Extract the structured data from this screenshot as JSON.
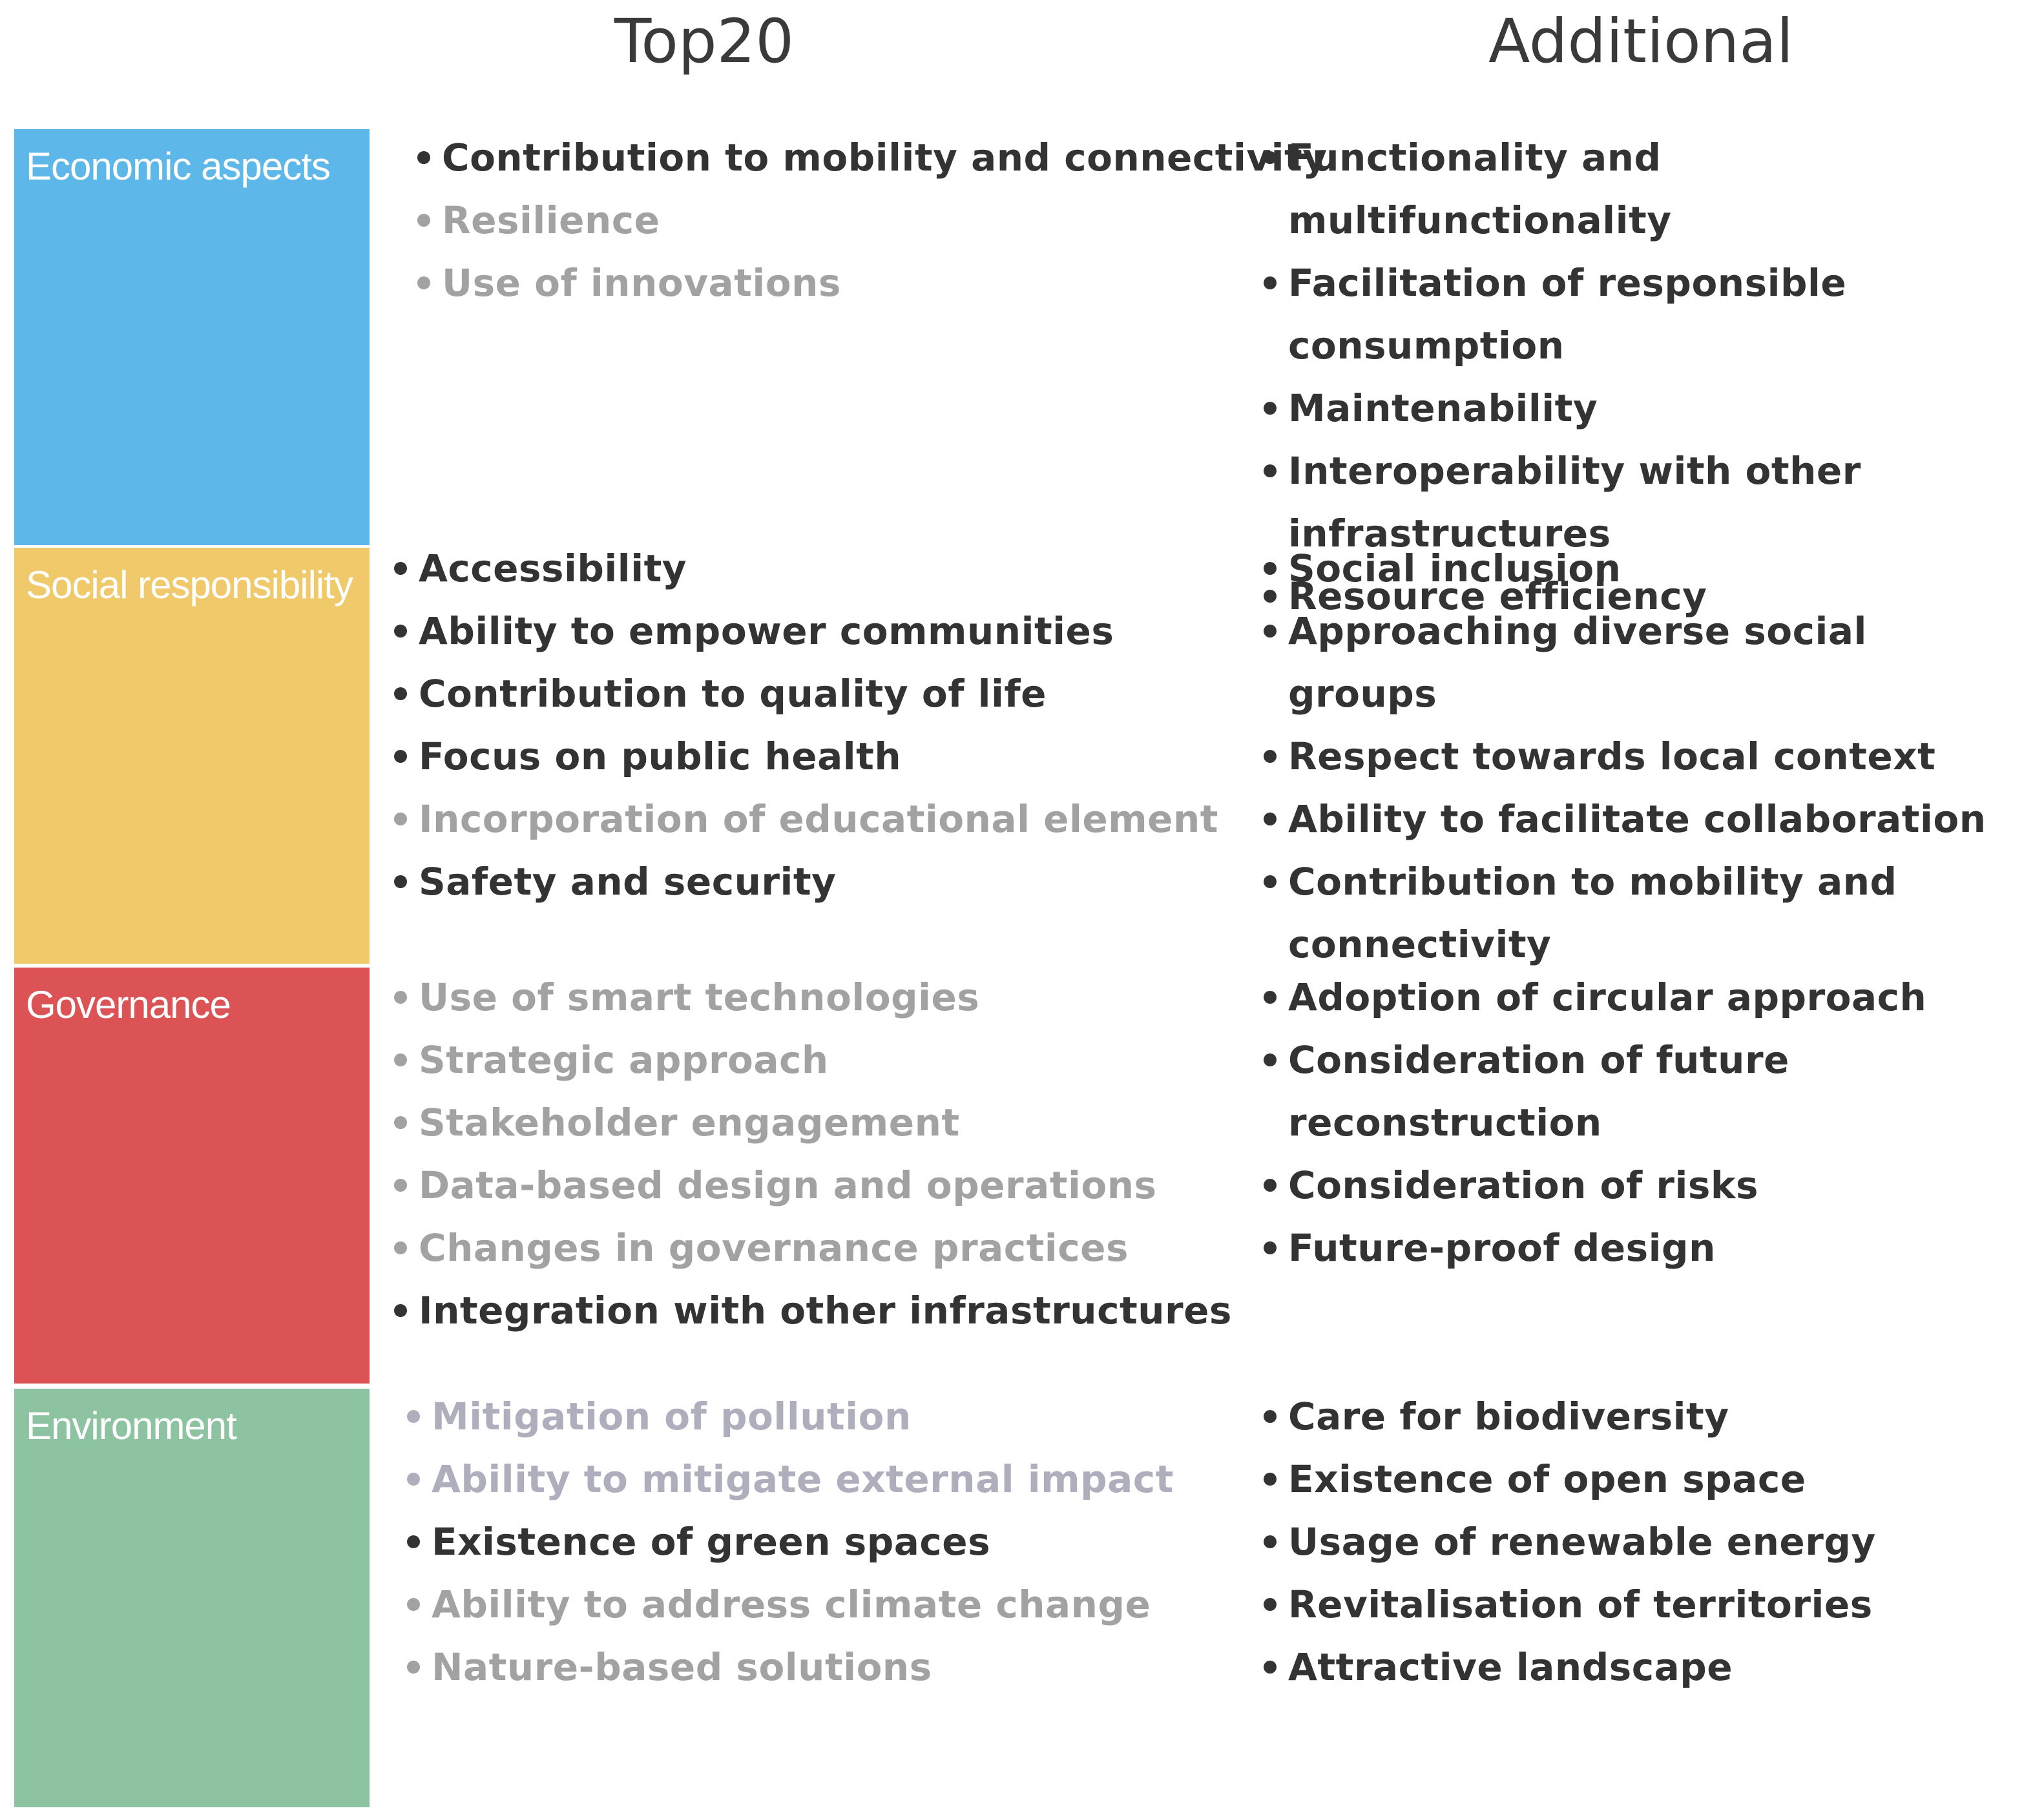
{
  "headers": {
    "top20": "Top20",
    "additional": "Additional"
  },
  "categories": [
    {
      "id": "economic",
      "label": "Economic aspects",
      "color": "#5db7e8",
      "top20": [
        {
          "text": "Contribution to mobility and connectivity",
          "tone": "dark"
        },
        {
          "text": "Resilience",
          "tone": "grey"
        },
        {
          "text": "Use of innovations",
          "tone": "grey"
        }
      ],
      "additional": [
        {
          "text": "Functionality and multifunctionality",
          "tone": "dark"
        },
        {
          "text": "Facilitation of responsible consumption",
          "tone": "dark"
        },
        {
          "text": "Maintenability",
          "tone": "dark"
        },
        {
          "text": "Interoperability with other infrastructures",
          "tone": "dark"
        },
        {
          "text": "Resource efficiency",
          "tone": "dark"
        }
      ]
    },
    {
      "id": "social",
      "label": "Social responsibility",
      "color": "#efc96a",
      "top20": [
        {
          "text": "Accessibility",
          "tone": "dark"
        },
        {
          "text": "Ability to empower communities",
          "tone": "dark"
        },
        {
          "text": "Contribution to quality of life",
          "tone": "dark"
        },
        {
          "text": "Focus on public health",
          "tone": "dark"
        },
        {
          "text": "Incorporation of educational element",
          "tone": "grey"
        },
        {
          "text": "Safety and security",
          "tone": "dark"
        }
      ],
      "additional": [
        {
          "text": "Social inclusion",
          "tone": "dark"
        },
        {
          "text": "Approaching diverse social groups",
          "tone": "dark"
        },
        {
          "text": "Respect towards local context",
          "tone": "dark"
        },
        {
          "text": "Ability to facilitate collaboration",
          "tone": "dark"
        },
        {
          "text": "Contribution to mobility and connectivity",
          "tone": "dark"
        }
      ]
    },
    {
      "id": "governance",
      "label": "Governance",
      "color": "#dc5355",
      "top20": [
        {
          "text": "Use of smart technologies",
          "tone": "grey"
        },
        {
          "text": "Strategic approach",
          "tone": "grey"
        },
        {
          "text": "Stakeholder engagement",
          "tone": "grey"
        },
        {
          "text": "Data-based design and operations",
          "tone": "grey"
        },
        {
          "text": "Changes in governance practices",
          "tone": "grey"
        },
        {
          "text": "Integration with other infrastructures",
          "tone": "dark"
        }
      ],
      "additional": [
        {
          "text": "Adoption of circular approach",
          "tone": "dark"
        },
        {
          "text": "Consideration of future reconstruction",
          "tone": "dark"
        },
        {
          "text": "Consideration of risks",
          "tone": "dark"
        },
        {
          "text": "Future-proof design",
          "tone": "dark"
        }
      ]
    },
    {
      "id": "environment",
      "label": "Environment",
      "color": "#8ec3a2",
      "top20": [
        {
          "text": "Mitigation of pollution",
          "tone": "lav"
        },
        {
          "text": "Ability to mitigate external impact",
          "tone": "lav"
        },
        {
          "text": "Existence of green spaces",
          "tone": "dark"
        },
        {
          "text": "Ability to address climate change",
          "tone": "grey"
        },
        {
          "text": "Nature-based solutions",
          "tone": "grey"
        }
      ],
      "additional": [
        {
          "text": "Care for biodiversity",
          "tone": "dark"
        },
        {
          "text": "Existence of open space",
          "tone": "dark"
        },
        {
          "text": "Usage of renewable energy",
          "tone": "dark"
        },
        {
          "text": "Revitalisation of territories",
          "tone": "dark"
        },
        {
          "text": "Attractive landscape",
          "tone": "dark"
        }
      ]
    }
  ]
}
